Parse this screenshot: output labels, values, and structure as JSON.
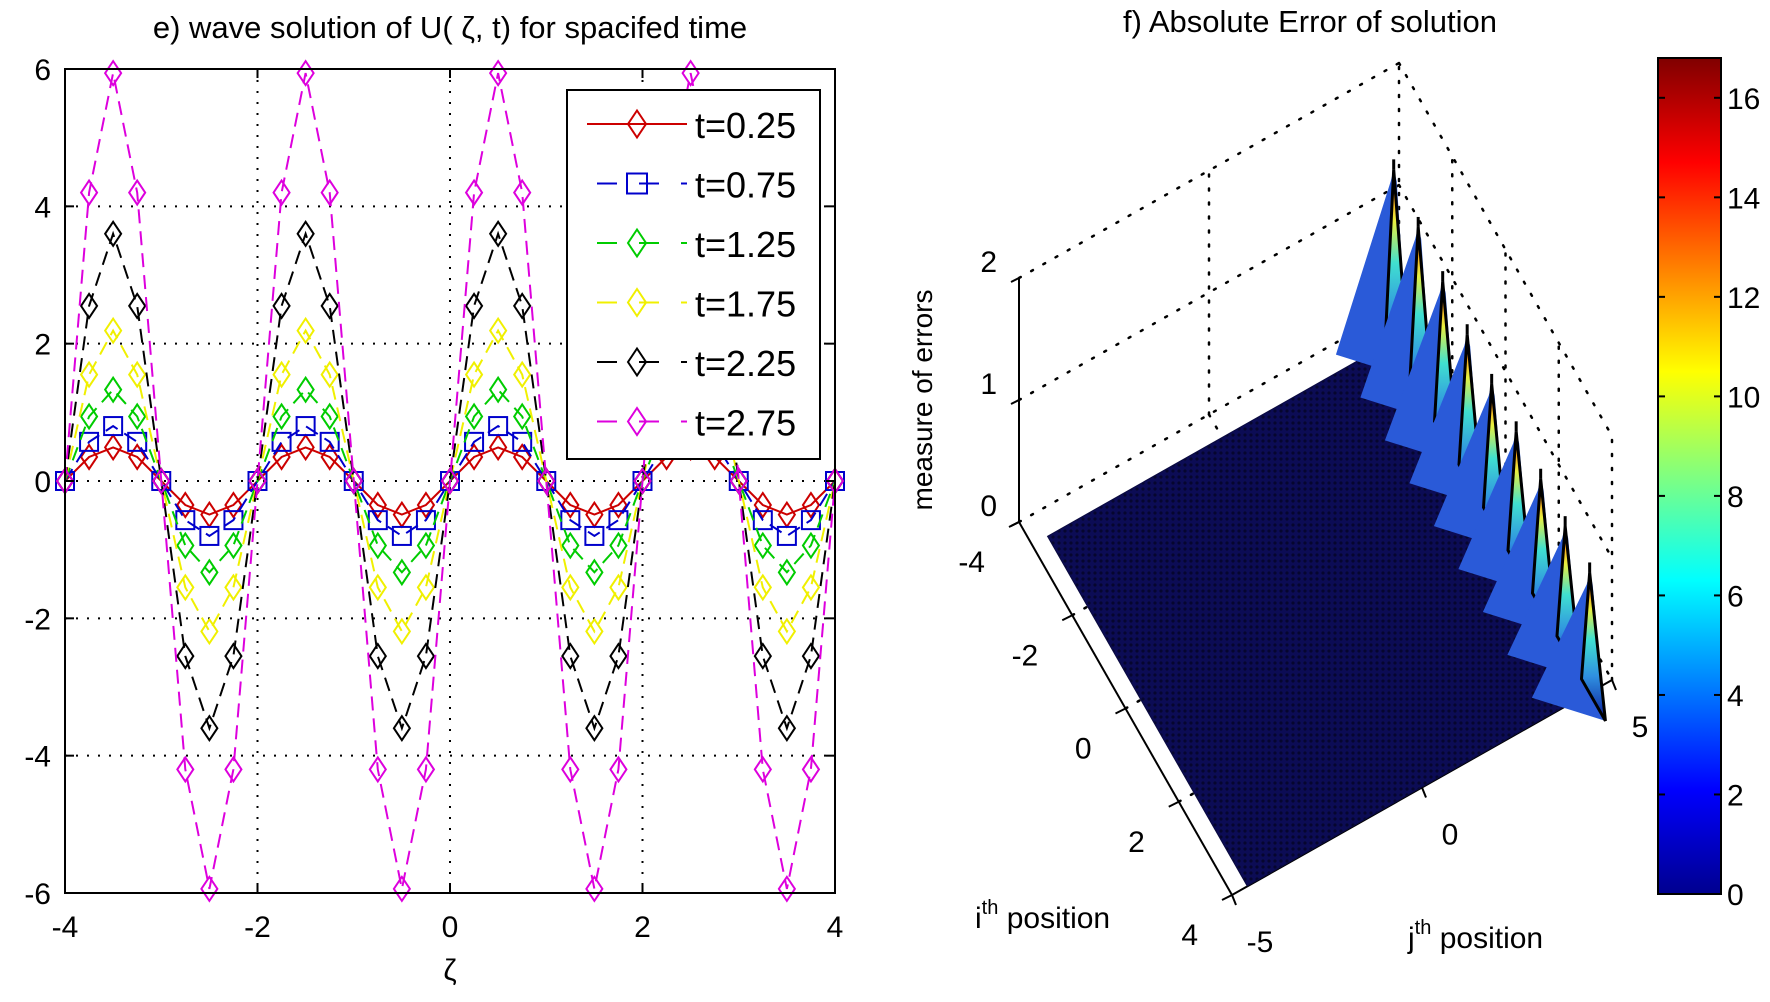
{
  "chart_data": [
    {
      "type": "line",
      "title": "e) wave solution of  U( ζ, t) for spacifed time",
      "xlabel": "ζ",
      "ylabel": "",
      "xlim": [
        -4,
        4
      ],
      "ylim": [
        -6,
        6
      ],
      "xticks": [
        "-4",
        "-2",
        "0",
        "2",
        "4"
      ],
      "yticks": [
        "6",
        "4",
        "2",
        "0",
        "-2",
        "-4",
        "-6"
      ],
      "grid": true,
      "legend_position": "top-right",
      "x": [
        -4,
        -3.75,
        -3.5,
        -3.25,
        -3,
        -2.75,
        -2.5,
        -2.25,
        -2,
        -1.75,
        -1.5,
        -1.25,
        -1,
        -0.75,
        -0.5,
        -0.25,
        0,
        0.25,
        0.5,
        0.75,
        1,
        1.25,
        1.5,
        1.75,
        2,
        2.25,
        2.5,
        2.75,
        3,
        3.25,
        3.5,
        3.75,
        4
      ],
      "series": [
        {
          "name": "t=0.25",
          "color": "#cc0000",
          "marker": "diamond",
          "dash": "solid",
          "values": [
            0,
            0.35,
            0.49,
            0.35,
            0,
            -0.35,
            -0.49,
            -0.35,
            0,
            0.35,
            0.49,
            0.35,
            0,
            -0.35,
            -0.49,
            -0.35,
            0,
            0.35,
            0.49,
            0.35,
            0,
            -0.35,
            -0.49,
            -0.35,
            0,
            0.35,
            0.49,
            0.35,
            0,
            -0.35,
            -0.49,
            -0.35,
            0
          ]
        },
        {
          "name": "t=0.75",
          "color": "#0000cc",
          "marker": "square",
          "dash": "dashed",
          "values": [
            0,
            0.57,
            0.8,
            0.57,
            0,
            -0.57,
            -0.8,
            -0.57,
            0,
            0.57,
            0.8,
            0.57,
            0,
            -0.57,
            -0.8,
            -0.57,
            0,
            0.57,
            0.8,
            0.57,
            0,
            -0.57,
            -0.8,
            -0.57,
            0,
            0.57,
            0.8,
            0.57,
            0,
            -0.57,
            -0.8,
            -0.57,
            0
          ]
        },
        {
          "name": "t=1.25",
          "color": "#00cc00",
          "marker": "diamond",
          "dash": "dashed",
          "values": [
            0,
            0.94,
            1.33,
            0.94,
            0,
            -0.94,
            -1.33,
            -0.94,
            0,
            0.94,
            1.33,
            0.94,
            0,
            -0.94,
            -1.33,
            -0.94,
            0,
            0.94,
            1.33,
            0.94,
            0,
            -0.94,
            -1.33,
            -0.94,
            0,
            0.94,
            1.33,
            0.94,
            0,
            -0.94,
            -1.33,
            -0.94,
            0
          ]
        },
        {
          "name": "t=1.75",
          "color": "#f0f000",
          "marker": "diamond",
          "dash": "dashed",
          "values": [
            0,
            1.55,
            2.19,
            1.55,
            0,
            -1.55,
            -2.19,
            -1.55,
            0,
            1.55,
            2.19,
            1.55,
            0,
            -1.55,
            -2.19,
            -1.55,
            0,
            1.55,
            2.19,
            1.55,
            0,
            -1.55,
            -2.19,
            -1.55,
            0,
            1.55,
            2.19,
            1.55,
            0,
            -1.55,
            -2.19,
            -1.55,
            0
          ]
        },
        {
          "name": "t=2.25",
          "color": "#000000",
          "marker": "diamond",
          "dash": "dashed",
          "values": [
            0,
            2.55,
            3.6,
            2.55,
            0,
            -2.55,
            -3.6,
            -2.55,
            0,
            2.55,
            3.6,
            2.55,
            0,
            -2.55,
            -3.6,
            -2.55,
            0,
            2.55,
            3.6,
            2.55,
            0,
            -2.55,
            -3.6,
            -2.55,
            0,
            2.55,
            3.6,
            2.55,
            0,
            -2.55,
            -3.6,
            -2.55,
            0
          ]
        },
        {
          "name": "t=2.75",
          "color": "#dd00dd",
          "marker": "diamond",
          "dash": "dashed",
          "values": [
            0,
            4.2,
            5.94,
            4.2,
            0,
            -4.2,
            -5.94,
            -4.2,
            0,
            4.2,
            5.94,
            4.2,
            0,
            -4.2,
            -5.94,
            -4.2,
            0,
            4.2,
            5.94,
            4.2,
            0,
            -4.2,
            -5.94,
            -4.2,
            0,
            4.2,
            5.94,
            4.2,
            0,
            -4.2,
            -5.94,
            -4.2,
            0
          ]
        }
      ]
    },
    {
      "type": "surface",
      "title": "f) Absolute Error of solution",
      "zlabel": "measure of errors",
      "ilabel_base": "i",
      "ilabel_sup": "th",
      "ilabel_rest": " position",
      "jlabel_base": "j",
      "jlabel_sup": "th",
      "jlabel_rest": " position",
      "ilim": [
        -4,
        4
      ],
      "jlim": [
        -5,
        5
      ],
      "zlim": [
        0,
        2
      ],
      "iticks": [
        "-4",
        "-2",
        "0",
        "2",
        "4"
      ],
      "jticks": [
        "-5",
        "0",
        "5"
      ],
      "zticks": [
        "0",
        "1",
        "2"
      ],
      "grid": true,
      "surface_base_value": 0.3,
      "peaks": {
        "j": 5,
        "i": [
          -4,
          -3,
          -2,
          -1,
          0,
          1,
          2,
          3,
          4
        ],
        "values": [
          16.8,
          15.5,
          14.5,
          13.6,
          13.0,
          12.6,
          12.2,
          11.8,
          11.5
        ]
      },
      "colorbar": {
        "colormap": "jet",
        "range": [
          0,
          16.8
        ],
        "ticks": [
          "0",
          "2",
          "4",
          "6",
          "8",
          "10",
          "12",
          "14",
          "16"
        ]
      }
    }
  ]
}
